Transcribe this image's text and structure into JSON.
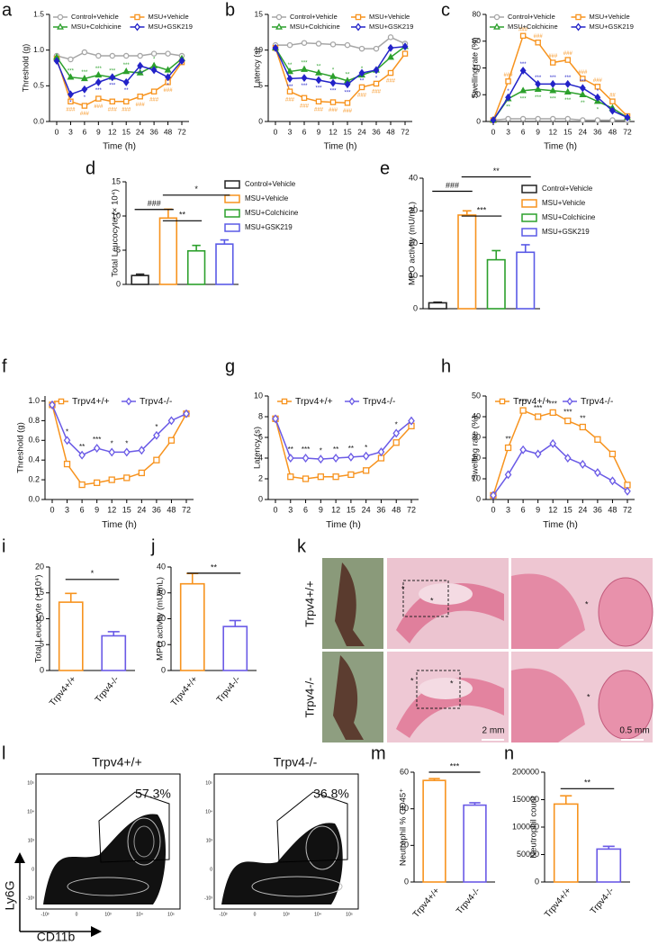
{
  "chart_data": [
    {
      "panel": "a",
      "type": "line",
      "ylabel": "Threshold (g)",
      "xlabel": "Time (h)",
      "categories": [
        "0",
        "3",
        "6",
        "9",
        "12",
        "15",
        "24",
        "36",
        "48",
        "72"
      ],
      "ylim": [
        0,
        1.5
      ],
      "yticks": [
        {
          "value": 0,
          "label": "0.0"
        },
        0.5,
        {
          "value": 1,
          "label": "1.0"
        },
        1.5
      ],
      "series": [
        {
          "name": "Control+Vehicle",
          "color": "#a6a6a6",
          "marker": "circle",
          "values": [
            0.92,
            0.87,
            0.97,
            0.92,
            0.92,
            0.92,
            0.92,
            0.95,
            0.95,
            0.92
          ]
        },
        {
          "name": "MSU+Vehicle",
          "color": "#f7931e",
          "marker": "square",
          "values": [
            0.88,
            0.28,
            0.22,
            0.32,
            0.28,
            0.28,
            0.35,
            0.42,
            0.55,
            0.83
          ],
          "significance_position": "below",
          "significance": [
            null,
            "###",
            "###",
            "###",
            "###",
            "###",
            "###",
            "###",
            "###",
            null
          ]
        },
        {
          "name": "MSU+Colchicine",
          "color": "#2ca02c",
          "marker": "triangle",
          "values": [
            0.9,
            0.62,
            0.6,
            0.65,
            0.62,
            0.7,
            0.68,
            0.78,
            0.72,
            0.88
          ],
          "significance": [
            null,
            "***",
            "***",
            "***",
            "***",
            "***",
            "**",
            "*",
            null,
            null
          ]
        },
        {
          "name": "MSU+GSK219",
          "color": "#2323c8",
          "marker": "diamond",
          "values": [
            0.85,
            0.38,
            0.45,
            0.55,
            0.62,
            0.55,
            0.78,
            0.72,
            0.62,
            0.85
          ],
          "significance_position": "below",
          "significance": [
            null,
            "*",
            "*",
            "***",
            "***",
            "**",
            "***",
            null,
            "*",
            null
          ]
        }
      ]
    },
    {
      "panel": "b",
      "type": "line",
      "ylabel": "Latency (s)",
      "xlabel": "Time (h)",
      "categories": [
        "0",
        "3",
        "6",
        "9",
        "12",
        "15",
        "24",
        "36",
        "48",
        "72"
      ],
      "ylim": [
        0,
        15
      ],
      "yticks": [
        0,
        5,
        10,
        15
      ],
      "series": [
        {
          "name": "Control+Vehicle",
          "color": "#a6a6a6",
          "marker": "circle",
          "values": [
            10.7,
            10.7,
            11,
            10.9,
            10.8,
            10.7,
            10.2,
            10.2,
            11.8,
            10.9
          ]
        },
        {
          "name": "MSU+Vehicle",
          "color": "#f7931e",
          "marker": "square",
          "values": [
            10.3,
            4.2,
            3.3,
            2.8,
            2.7,
            2.6,
            4.8,
            5.3,
            6.8,
            9.5
          ],
          "significance_position": "below",
          "significance": [
            null,
            "###",
            "###",
            "###",
            "###",
            "###",
            "###",
            "###",
            "###",
            null
          ]
        },
        {
          "name": "MSU+Colchicine",
          "color": "#2ca02c",
          "marker": "triangle",
          "values": [
            10.3,
            7,
            7.3,
            6.8,
            6.3,
            5.7,
            6.5,
            7.2,
            9,
            10.5
          ],
          "significance": [
            null,
            "**",
            "***",
            "**",
            "*",
            "**",
            "*",
            null,
            null,
            null
          ]
        },
        {
          "name": "MSU+GSK219",
          "color": "#2323c8",
          "marker": "diamond",
          "values": [
            10.3,
            6,
            6.1,
            5.8,
            5.4,
            5.2,
            6.8,
            7.2,
            10.3,
            10.5
          ],
          "significance_position": "below",
          "significance": [
            null,
            "***",
            "***",
            "***",
            "***",
            "***",
            "**",
            "*",
            null,
            null
          ]
        }
      ]
    },
    {
      "panel": "c",
      "type": "line",
      "ylabel": "Swelling rate (%)",
      "xlabel": "Time (h)",
      "categories": [
        "0",
        "3",
        "6",
        "9",
        "12",
        "15",
        "24",
        "36",
        "48",
        "72"
      ],
      "ylim": [
        0,
        80
      ],
      "yticks": [
        0,
        20,
        40,
        60,
        80
      ],
      "series": [
        {
          "name": "Control+Vehicle",
          "color": "#a6a6a6",
          "marker": "circle",
          "values": [
            1,
            2,
            2,
            2,
            2,
            2,
            1,
            1,
            1,
            1
          ]
        },
        {
          "name": "MSU+Vehicle",
          "color": "#f7931e",
          "marker": "square",
          "values": [
            1,
            30,
            64,
            59,
            44,
            46,
            32,
            26,
            15,
            4
          ],
          "significance": [
            null,
            "###",
            "###",
            "###",
            "###",
            "###",
            "###",
            "###",
            "##",
            null
          ]
        },
        {
          "name": "MSU+Colchicine",
          "color": "#2ca02c",
          "marker": "triangle",
          "values": [
            1,
            17,
            23,
            24,
            23,
            22,
            20,
            15,
            10,
            3
          ],
          "significance_position": "below",
          "significance": [
            null,
            "**",
            "***",
            "***",
            "***",
            "***",
            "**",
            "*",
            null,
            null
          ]
        },
        {
          "name": "MSU+GSK219",
          "color": "#2323c8",
          "marker": "diamond",
          "values": [
            1,
            18,
            38,
            28,
            28,
            28,
            25,
            18,
            8,
            3
          ],
          "significance": [
            null,
            "*",
            "***",
            "***",
            "***",
            "***",
            "***",
            "*",
            null,
            null
          ]
        }
      ]
    },
    {
      "panel": "d",
      "type": "bar",
      "ylabel": "Total Leucocyte (× 10⁴)",
      "legend": "right",
      "categories": [
        "Control+Vehicle",
        "MSU+Vehicle",
        "MSU+Colchicine",
        "MSU+GSK219"
      ],
      "colors": [
        "#222222",
        "#f7931e",
        "#2ca02c",
        "#5a5ae6"
      ],
      "values": [
        1.3,
        9.7,
        4.9,
        5.9
      ],
      "errors": [
        0.2,
        1.3,
        0.8,
        0.6
      ],
      "ylim": [
        0,
        15
      ],
      "yticks": [
        0,
        5,
        10,
        15
      ],
      "annotations": [
        "###",
        "**",
        "*"
      ]
    },
    {
      "panel": "e",
      "type": "bar",
      "ylabel": "MPO activity (mU/mL)",
      "legend": "right",
      "categories": [
        "Control+Vehicle",
        "MSU+Vehicle",
        "MSU+Colchicine",
        "MSU+GSK219"
      ],
      "colors": [
        "#222222",
        "#f7931e",
        "#2ca02c",
        "#5a5ae6"
      ],
      "values": [
        1.8,
        28.7,
        15,
        17.3
      ],
      "errors": [
        0.2,
        1.3,
        2.8,
        2.3
      ],
      "ylim": [
        0,
        40
      ],
      "yticks": [
        0,
        10,
        20,
        30,
        40
      ],
      "annotations": [
        "###",
        "***",
        "**"
      ]
    },
    {
      "panel": "f",
      "type": "line",
      "ylabel": "Threshold (g)",
      "xlabel": "Time (h)",
      "categories": [
        "0",
        "3",
        "6",
        "9",
        "12",
        "15",
        "24",
        "36",
        "48",
        "72"
      ],
      "ylim": [
        0,
        1.05
      ],
      "yticks": [
        {
          "value": 0,
          "label": "0.0"
        },
        0.2,
        0.4,
        0.6,
        0.8,
        {
          "value": 1,
          "label": "1.0"
        }
      ],
      "significance": [
        null,
        "*",
        "**",
        "***",
        "*",
        "*",
        null,
        "*",
        null,
        null
      ],
      "series": [
        {
          "name": "Trpv4+/+",
          "color": "#f7931e",
          "marker": "square",
          "values": [
            0.96,
            0.36,
            0.15,
            0.17,
            0.2,
            0.22,
            0.27,
            0.4,
            0.6,
            0.87
          ]
        },
        {
          "name": "Trpv4-/-",
          "color": "#6a5ae6",
          "marker": "diamond",
          "values": [
            0.96,
            0.6,
            0.45,
            0.52,
            0.48,
            0.48,
            0.5,
            0.65,
            0.8,
            0.87
          ]
        }
      ]
    },
    {
      "panel": "g",
      "type": "line",
      "ylabel": "Latency (s)",
      "xlabel": "Time (h)",
      "categories": [
        "0",
        "3",
        "6",
        "9",
        "12",
        "15",
        "24",
        "36",
        "48",
        "72"
      ],
      "ylim": [
        0,
        10
      ],
      "yticks": [
        0,
        2,
        4,
        6,
        8,
        10
      ],
      "significance": [
        null,
        "**",
        "***",
        "*",
        "**",
        "**",
        "*",
        null,
        "*",
        null
      ],
      "series": [
        {
          "name": "Trpv4+/+",
          "color": "#f7931e",
          "marker": "square",
          "values": [
            7.8,
            2.2,
            2.0,
            2.2,
            2.2,
            2.4,
            2.8,
            4.0,
            5.5,
            7.1
          ]
        },
        {
          "name": "Trpv4-/-",
          "color": "#6a5ae6",
          "marker": "diamond",
          "values": [
            7.8,
            4.0,
            4.0,
            3.9,
            4.0,
            4.1,
            4.2,
            4.6,
            6.4,
            7.6
          ]
        }
      ]
    },
    {
      "panel": "h",
      "type": "line",
      "ylabel": "Swelling rate (%)",
      "xlabel": "Time (h)",
      "categories": [
        "0",
        "3",
        "6",
        "9",
        "12",
        "15",
        "24",
        "36",
        "48",
        "72"
      ],
      "ylim": [
        0,
        50
      ],
      "yticks": [
        0,
        10,
        20,
        30,
        40,
        50
      ],
      "significance": [
        null,
        "**",
        "***",
        "***",
        "***",
        "***",
        "**",
        null,
        null,
        null
      ],
      "series": [
        {
          "name": "Trpv4+/+",
          "color": "#f7931e",
          "marker": "square",
          "values": [
            2,
            25,
            43,
            40,
            42,
            38,
            35,
            29,
            22,
            7
          ]
        },
        {
          "name": "Trpv4-/-",
          "color": "#6a5ae6",
          "marker": "diamond",
          "values": [
            2,
            12,
            24,
            22,
            27,
            20,
            17,
            13,
            9,
            4
          ]
        }
      ]
    },
    {
      "panel": "i",
      "type": "bar",
      "ylabel": "Total Leucocyte (× 10⁴)",
      "categories": [
        "Trpv4+/+",
        "Trpv4-/-"
      ],
      "colors": [
        "#f7931e",
        "#6a5ae6"
      ],
      "values": [
        13.2,
        6.7
      ],
      "errors": [
        1.7,
        0.8
      ],
      "ylim": [
        0,
        20
      ],
      "yticks": [
        0,
        5,
        10,
        15,
        20
      ],
      "annotations": [
        "*"
      ]
    },
    {
      "panel": "j",
      "type": "bar",
      "ylabel": "MPO activity (mU/mL)",
      "categories": [
        "Trpv4+/+",
        "Trpv4-/-"
      ],
      "colors": [
        "#f7931e",
        "#6a5ae6"
      ],
      "values": [
        33.5,
        17
      ],
      "errors": [
        4,
        2.3
      ],
      "ylim": [
        0,
        40
      ],
      "yticks": [
        0,
        10,
        20,
        30,
        40
      ],
      "annotations": [
        "**"
      ]
    },
    {
      "panel": "k",
      "type": "image",
      "rows": [
        "Trpv4+/+",
        "Trpv4-/-"
      ],
      "scale_bars": [
        "2 mm",
        "0.5 mm"
      ],
      "marker": "*"
    },
    {
      "panel": "l",
      "type": "flow",
      "groups": [
        "Trpv4+/+",
        "Trpv4-/-"
      ],
      "gate_percent": [
        "57.3%",
        "36.8%"
      ],
      "ylabel": "Ly6G",
      "xlabel": "CD11b",
      "yticks": [
        "10⁵",
        "10⁴",
        "10³",
        "0",
        "-10³"
      ],
      "xticks": [
        "-10³",
        "0",
        "10³",
        "10⁴",
        "10⁵"
      ]
    },
    {
      "panel": "m",
      "type": "bar",
      "ylabel": "Neutrophil % CD45⁺",
      "categories": [
        "Trpv4+/+",
        "Trpv4-/-"
      ],
      "colors": [
        "#f7931e",
        "#6a5ae6"
      ],
      "values": [
        55.5,
        42
      ],
      "errors": [
        1,
        1.3
      ],
      "ylim": [
        0,
        60
      ],
      "yticks": [
        0,
        20,
        40,
        60
      ],
      "annotations": [
        "***"
      ]
    },
    {
      "panel": "n",
      "type": "bar",
      "ylabel": "Neutrophil count",
      "categories": [
        "Trpv4+/+",
        "Trpv4-/-"
      ],
      "colors": [
        "#f7931e",
        "#6a5ae6"
      ],
      "values": [
        142000,
        60000
      ],
      "errors": [
        15000,
        5000
      ],
      "ylim": [
        0,
        200000
      ],
      "yticks": [
        0,
        50000,
        100000,
        150000,
        200000
      ],
      "annotations": [
        "**"
      ]
    }
  ]
}
